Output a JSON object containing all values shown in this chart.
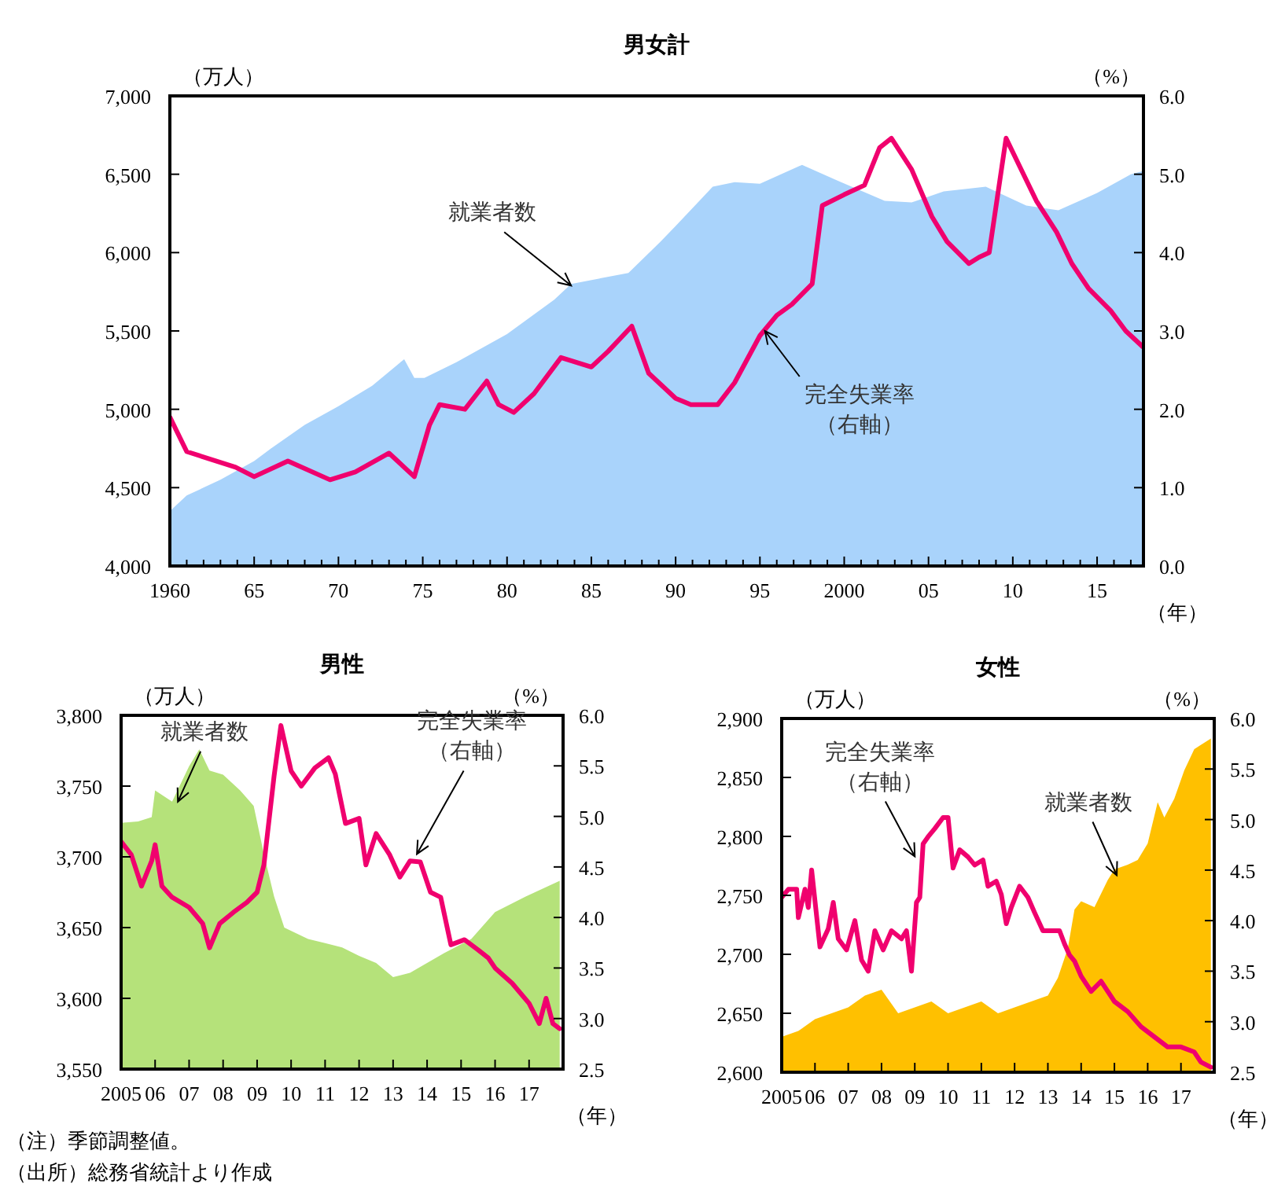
{
  "chart_data": [
    {
      "type": "area",
      "title": "男女計",
      "ylabel": "（万人）",
      "y2label": "（%）",
      "xlabel": "（年）",
      "xlim": [
        1960,
        2017.75
      ],
      "xticks": [
        {
          "value": 1960,
          "label": "1960"
        },
        {
          "value": 1961,
          "label": null
        },
        {
          "value": 1962,
          "label": null
        },
        {
          "value": 1963,
          "label": null
        },
        {
          "value": 1964,
          "label": null
        },
        {
          "value": 1965,
          "label": "65"
        },
        {
          "value": 1966,
          "label": null
        },
        {
          "value": 1967,
          "label": null
        },
        {
          "value": 1968,
          "label": null
        },
        {
          "value": 1969,
          "label": null
        },
        {
          "value": 1970,
          "label": "70"
        },
        {
          "value": 1971,
          "label": null
        },
        {
          "value": 1972,
          "label": null
        },
        {
          "value": 1973,
          "label": null
        },
        {
          "value": 1974,
          "label": null
        },
        {
          "value": 1975,
          "label": "75"
        },
        {
          "value": 1976,
          "label": null
        },
        {
          "value": 1977,
          "label": null
        },
        {
          "value": 1978,
          "label": null
        },
        {
          "value": 1979,
          "label": null
        },
        {
          "value": 1980,
          "label": "80"
        },
        {
          "value": 1981,
          "label": null
        },
        {
          "value": 1982,
          "label": null
        },
        {
          "value": 1983,
          "label": null
        },
        {
          "value": 1984,
          "label": null
        },
        {
          "value": 1985,
          "label": "85"
        },
        {
          "value": 1986,
          "label": null
        },
        {
          "value": 1987,
          "label": null
        },
        {
          "value": 1988,
          "label": null
        },
        {
          "value": 1989,
          "label": null
        },
        {
          "value": 1990,
          "label": "90"
        },
        {
          "value": 1991,
          "label": null
        },
        {
          "value": 1992,
          "label": null
        },
        {
          "value": 1993,
          "label": null
        },
        {
          "value": 1994,
          "label": null
        },
        {
          "value": 1995,
          "label": "95"
        },
        {
          "value": 1996,
          "label": null
        },
        {
          "value": 1997,
          "label": null
        },
        {
          "value": 1998,
          "label": null
        },
        {
          "value": 1999,
          "label": null
        },
        {
          "value": 2000,
          "label": "2000"
        },
        {
          "value": 2001,
          "label": null
        },
        {
          "value": 2002,
          "label": null
        },
        {
          "value": 2003,
          "label": null
        },
        {
          "value": 2004,
          "label": null
        },
        {
          "value": 2005,
          "label": "05"
        },
        {
          "value": 2006,
          "label": null
        },
        {
          "value": 2007,
          "label": null
        },
        {
          "value": 2008,
          "label": null
        },
        {
          "value": 2009,
          "label": null
        },
        {
          "value": 2010,
          "label": "10"
        },
        {
          "value": 2011,
          "label": null
        },
        {
          "value": 2012,
          "label": null
        },
        {
          "value": 2013,
          "label": null
        },
        {
          "value": 2014,
          "label": null
        },
        {
          "value": 2015,
          "label": "15"
        },
        {
          "value": 2016,
          "label": null
        },
        {
          "value": 2017,
          "label": null
        }
      ],
      "ylim": [
        4000,
        7000
      ],
      "yticks": [
        {
          "value": 4000,
          "label": "4,000"
        },
        {
          "value": 4500,
          "label": "4,500"
        },
        {
          "value": 5000,
          "label": "5,000"
        },
        {
          "value": 5500,
          "label": "5,500"
        },
        {
          "value": 6000,
          "label": "6,000"
        },
        {
          "value": 6500,
          "label": "6,500"
        },
        {
          "value": 7000,
          "label": "7,000"
        }
      ],
      "y2lim": [
        0,
        6
      ],
      "y2ticks": [
        {
          "value": 0,
          "label": "0.0"
        },
        {
          "value": 1,
          "label": "1.0"
        },
        {
          "value": 2,
          "label": "2.0"
        },
        {
          "value": 3,
          "label": "3.0"
        },
        {
          "value": 4,
          "label": "4.0"
        },
        {
          "value": 5,
          "label": "5.0"
        },
        {
          "value": 6,
          "label": "6.0"
        }
      ],
      "series": [
        {
          "type": "area",
          "color": "#a9d3fb",
          "x": [
            1960,
            1961,
            1963,
            1965,
            1966,
            1968,
            1970,
            1972,
            1973.9,
            1974.5,
            1975.1,
            1977,
            1980,
            1982.8,
            1983.8,
            1987.2,
            1989.1,
            1990,
            1992.2,
            1993.5,
            1995,
            1997.5,
            1999.6,
            2002.4,
            2004,
            2005.9,
            2008.4,
            2010.8,
            2012.7,
            2015,
            2017,
            2017.7
          ],
          "values": [
            4350,
            4450,
            4550,
            4670,
            4750,
            4900,
            5020,
            5150,
            5320,
            5200,
            5200,
            5300,
            5480,
            5700,
            5800,
            5870,
            6070,
            6170,
            6420,
            6450,
            6440,
            6560,
            6460,
            6330,
            6320,
            6390,
            6420,
            6300,
            6270,
            6380,
            6500,
            6520
          ]
        },
        {
          "type": "line",
          "axis": "y2",
          "color": "#f0006e",
          "x": [
            1960,
            1961,
            1963.9,
            1965,
            1967,
            1969.5,
            1971,
            1973,
            1974.5,
            1975.4,
            1976,
            1977.5,
            1978.8,
            1979.5,
            1980.4,
            1981.6,
            1983.2,
            1985,
            1986,
            1987.4,
            1988.4,
            1990,
            1990.9,
            1992.5,
            1993.5,
            1995,
            1996,
            1996.9,
            1998.1,
            1998.7,
            2000,
            2001.2,
            2002.1,
            2002.8,
            2004,
            2005.2,
            2006.1,
            2007.4,
            2008,
            2008.6,
            2009.6,
            2010.5,
            2011.4,
            2012.6,
            2013.5,
            2014.5,
            2015.8,
            2016.7,
            2017.7
          ],
          "values": [
            1.9,
            1.46,
            1.26,
            1.14,
            1.34,
            1.1,
            1.2,
            1.44,
            1.14,
            1.8,
            2.06,
            2.0,
            2.36,
            2.06,
            1.96,
            2.2,
            2.66,
            2.54,
            2.74,
            3.06,
            2.46,
            2.14,
            2.06,
            2.06,
            2.34,
            2.94,
            3.2,
            3.34,
            3.6,
            4.6,
            4.74,
            4.86,
            5.34,
            5.46,
            5.06,
            4.46,
            4.14,
            3.86,
            3.94,
            4.0,
            5.46,
            5.06,
            4.66,
            4.26,
            3.86,
            3.54,
            3.26,
            3.0,
            2.8
          ]
        }
      ],
      "annotations": [
        {
          "text": "就業者数",
          "x": 1983.8,
          "y": 5790
        },
        {
          "text": "完全失業率（右軸）",
          "x": 1995.3,
          "y": 5500
        }
      ]
    },
    {
      "type": "area",
      "title": "男性",
      "ylabel": "（万人）",
      "y2label": "（%）",
      "xlabel": "（年）",
      "xlim": [
        2005,
        2018
      ],
      "xticks": [
        {
          "value": 2005,
          "label": "2005"
        },
        {
          "value": 2006,
          "label": "06"
        },
        {
          "value": 2007,
          "label": "07"
        },
        {
          "value": 2008,
          "label": "08"
        },
        {
          "value": 2009,
          "label": "09"
        },
        {
          "value": 2010,
          "label": "10"
        },
        {
          "value": 2011,
          "label": "11"
        },
        {
          "value": 2012,
          "label": "12"
        },
        {
          "value": 2013,
          "label": "13"
        },
        {
          "value": 2014,
          "label": "14"
        },
        {
          "value": 2015,
          "label": "15"
        },
        {
          "value": 2016,
          "label": "16"
        },
        {
          "value": 2017,
          "label": "17"
        }
      ],
      "ylim": [
        3550,
        3800
      ],
      "yticks": [
        {
          "value": 3550,
          "label": "3,550"
        },
        {
          "value": 3600,
          "label": "3,600"
        },
        {
          "value": 3650,
          "label": "3,650"
        },
        {
          "value": 3700,
          "label": "3,700"
        },
        {
          "value": 3750,
          "label": "3,750"
        },
        {
          "value": 3800,
          "label": "3,800"
        }
      ],
      "y2lim": [
        2.5,
        6
      ],
      "y2ticks": [
        {
          "value": 2.5,
          "label": "2.5"
        },
        {
          "value": 3,
          "label": "3.0"
        },
        {
          "value": 3.5,
          "label": "3.5"
        },
        {
          "value": 4,
          "label": "4.0"
        },
        {
          "value": 4.5,
          "label": "4.5"
        },
        {
          "value": 5,
          "label": "5.0"
        },
        {
          "value": 5.5,
          "label": "5.5"
        },
        {
          "value": 6,
          "label": "6.0"
        }
      ],
      "series": [
        {
          "type": "area",
          "color": "#b5e27a",
          "x": [
            2005,
            2005.5,
            2005.9,
            2006.0,
            2006.5,
            2007,
            2007.3,
            2007.6,
            2008,
            2008.5,
            2008.9,
            2009.2,
            2009.5,
            2009.8,
            2010.5,
            2011,
            2011.5,
            2012,
            2012.5,
            2013,
            2013.5,
            2014,
            2014.5,
            2015.3,
            2016,
            2016.9,
            2017.9
          ],
          "values": [
            3724,
            3725,
            3728,
            3747,
            3739,
            3764,
            3776,
            3761,
            3758,
            3747,
            3736,
            3702,
            3672,
            3650,
            3642,
            3639,
            3636,
            3630,
            3625,
            3615,
            3618,
            3625,
            3632,
            3642,
            3661,
            3672,
            3683
          ]
        },
        {
          "type": "line",
          "axis": "y2",
          "color": "#f0006e",
          "x": [
            2005,
            2005.3,
            2005.6,
            2005.9,
            2006.0,
            2006.2,
            2006.5,
            2007,
            2007.4,
            2007.6,
            2007.9,
            2008.3,
            2008.7,
            2009.0,
            2009.2,
            2009.5,
            2009.7,
            2010.0,
            2010.3,
            2010.7,
            2011.1,
            2011.3,
            2011.6,
            2012,
            2012.2,
            2012.5,
            2012.9,
            2013.2,
            2013.5,
            2013.8,
            2014.1,
            2014.4,
            2014.7,
            2015.1,
            2015.5,
            2015.8,
            2016.0,
            2016.5,
            2017.0,
            2017.3,
            2017.5,
            2017.7,
            2017.9
          ],
          "values": [
            4.75,
            4.62,
            4.31,
            4.56,
            4.72,
            4.31,
            4.2,
            4.1,
            3.94,
            3.7,
            3.94,
            4.05,
            4.15,
            4.25,
            4.52,
            5.4,
            5.9,
            5.45,
            5.3,
            5.48,
            5.58,
            5.42,
            4.93,
            4.98,
            4.52,
            4.83,
            4.62,
            4.4,
            4.56,
            4.55,
            4.25,
            4.2,
            3.73,
            3.78,
            3.68,
            3.6,
            3.5,
            3.35,
            3.15,
            2.95,
            3.2,
            2.95,
            2.9
          ]
        }
      ],
      "annotations": [
        {
          "text": "就業者数",
          "x": 2006.67,
          "y": 3739
        },
        {
          "text": "完全失業率（右軸）",
          "x": 2013.7,
          "y": 3702
        }
      ]
    },
    {
      "type": "area",
      "title": "女性",
      "ylabel": "（万人）",
      "y2label": "（%）",
      "xlabel": "（年）",
      "xlim": [
        2005,
        2018
      ],
      "xticks": [
        {
          "value": 2005,
          "label": "2005"
        },
        {
          "value": 2006,
          "label": "06"
        },
        {
          "value": 2007,
          "label": "07"
        },
        {
          "value": 2008,
          "label": "08"
        },
        {
          "value": 2009,
          "label": "09"
        },
        {
          "value": 2010,
          "label": "10"
        },
        {
          "value": 2011,
          "label": "11"
        },
        {
          "value": 2012,
          "label": "12"
        },
        {
          "value": 2013,
          "label": "13"
        },
        {
          "value": 2014,
          "label": "14"
        },
        {
          "value": 2015,
          "label": "15"
        },
        {
          "value": 2016,
          "label": "16"
        },
        {
          "value": 2017,
          "label": "17"
        }
      ],
      "ylim": [
        2600,
        2900
      ],
      "yticks": [
        {
          "value": 2600,
          "label": "2,600"
        },
        {
          "value": 2650,
          "label": "2,650"
        },
        {
          "value": 2700,
          "label": "2,700"
        },
        {
          "value": 2750,
          "label": "2,750"
        },
        {
          "value": 2800,
          "label": "2,800"
        },
        {
          "value": 2850,
          "label": "2,850"
        },
        {
          "value": 2900,
          "label": "2,900"
        }
      ],
      "y2lim": [
        2.5,
        6
      ],
      "y2ticks": [
        {
          "value": 2.5,
          "label": "2.5"
        },
        {
          "value": 3,
          "label": "3.0"
        },
        {
          "value": 3.5,
          "label": "3.5"
        },
        {
          "value": 4,
          "label": "4.0"
        },
        {
          "value": 4.5,
          "label": "4.5"
        },
        {
          "value": 5,
          "label": "5.0"
        },
        {
          "value": 5.5,
          "label": "5.5"
        },
        {
          "value": 6,
          "label": "6.0"
        }
      ],
      "series": [
        {
          "type": "area",
          "color": "#ffc000",
          "x": [
            2005,
            2005.5,
            2006,
            2006.5,
            2007,
            2007.5,
            2008,
            2008.5,
            2009,
            2009.5,
            2010,
            2010.5,
            2011,
            2011.5,
            2012,
            2012.5,
            2013,
            2013.3,
            2013.6,
            2013.8,
            2014,
            2014.4,
            2014.8,
            2015,
            2015.4,
            2015.7,
            2016,
            2016.3,
            2016.5,
            2016.8,
            2017.1,
            2017.4,
            2017.9
          ],
          "values": [
            2630,
            2635,
            2645,
            2650,
            2655,
            2665,
            2670,
            2650,
            2655,
            2660,
            2650,
            2655,
            2660,
            2650,
            2655,
            2660,
            2665,
            2680,
            2705,
            2738,
            2745,
            2740,
            2763,
            2772,
            2776,
            2780,
            2794,
            2829,
            2816,
            2832,
            2856,
            2874,
            2883
          ]
        },
        {
          "type": "line",
          "axis": "y2",
          "color": "#f0006e",
          "x": [
            2005,
            2005.2,
            2005.45,
            2005.5,
            2005.7,
            2005.8,
            2005.9,
            2006.15,
            2006.4,
            2006.55,
            2006.7,
            2006.95,
            2007.2,
            2007.4,
            2007.6,
            2007.8,
            2008.05,
            2008.3,
            2008.6,
            2008.75,
            2008.9,
            2009.05,
            2009.15,
            2009.25,
            2009.4,
            2009.6,
            2009.85,
            2010.0,
            2010.15,
            2010.35,
            2010.6,
            2010.8,
            2011.05,
            2011.2,
            2011.45,
            2011.6,
            2011.75,
            2011.9,
            2012.15,
            2012.4,
            2012.6,
            2012.85,
            2013.1,
            2013.35,
            2013.5,
            2013.65,
            2013.8,
            2014.0,
            2014.3,
            2014.6,
            2015.0,
            2015.4,
            2015.8,
            2016.2,
            2016.6,
            2017.0,
            2017.4,
            2017.6,
            2017.9
          ],
          "values": [
            4.23,
            4.31,
            4.31,
            4.03,
            4.31,
            4.13,
            4.5,
            3.74,
            3.92,
            4.18,
            3.82,
            3.71,
            4.0,
            3.61,
            3.5,
            3.9,
            3.71,
            3.9,
            3.82,
            3.9,
            3.5,
            4.18,
            4.23,
            4.76,
            4.83,
            4.91,
            5.02,
            5.02,
            4.52,
            4.7,
            4.63,
            4.55,
            4.6,
            4.34,
            4.39,
            4.26,
            3.97,
            4.13,
            4.34,
            4.23,
            4.08,
            3.9,
            3.9,
            3.9,
            3.77,
            3.66,
            3.6,
            3.45,
            3.3,
            3.4,
            3.2,
            3.1,
            2.95,
            2.85,
            2.75,
            2.75,
            2.7,
            2.6,
            2.55
          ]
        }
      ],
      "annotations": [
        {
          "text": "完全失業率（右軸）",
          "x": 2009.0,
          "y": 2783
        },
        {
          "text": "就業者数",
          "x": 2015.07,
          "y": 2767
        },
        "（注）季節調整値。",
        "（出所）総務省統計より作成"
      ]
    }
  ]
}
